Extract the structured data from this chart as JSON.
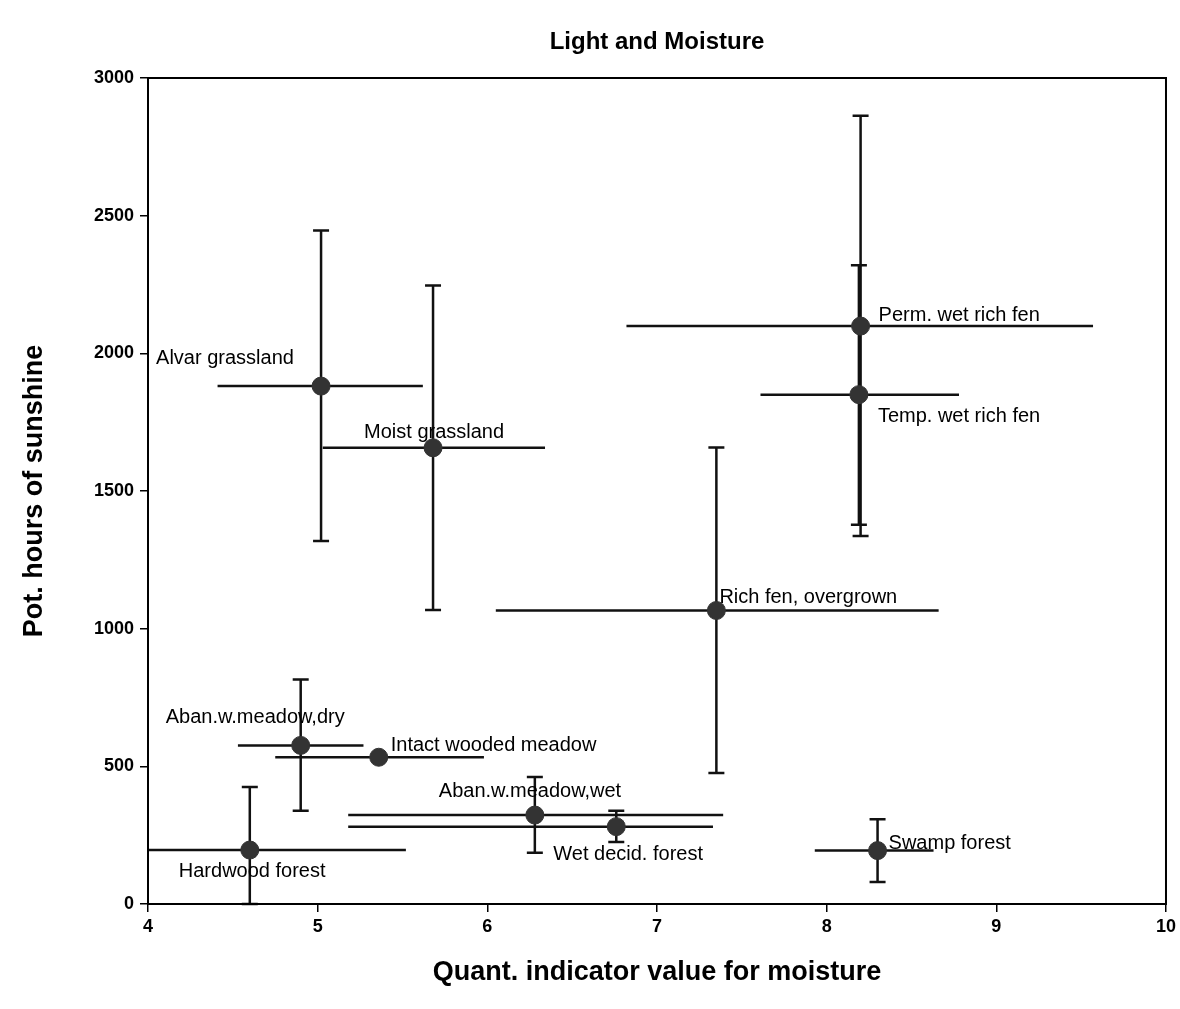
{
  "chart_data": {
    "type": "scatter",
    "title": "Light and Moisture",
    "xlabel": "Quant. indicator value for moisture",
    "ylabel": "Pot. hours of sunshine",
    "x": [
      5.02,
      5.68,
      8.2,
      8.19,
      7.35,
      4.9,
      5.36,
      4.6,
      6.28,
      6.76,
      8.3
    ],
    "values": [
      1881,
      1657,
      2099,
      1850,
      1066,
      576,
      533,
      196,
      323,
      281,
      194
    ],
    "errors": [
      [
        1318,
        2446
      ],
      [
        1068,
        2246
      ],
      [
        1337,
        2863
      ],
      [
        1377,
        2320
      ],
      [
        476,
        1658
      ],
      [
        339,
        815
      ],
      null,
      [
        0,
        425
      ],
      [
        186,
        461
      ],
      [
        225,
        339
      ],
      [
        80,
        308
      ]
    ],
    "xerrors": [
      [
        4.41,
        5.62
      ],
      [
        5.03,
        6.34
      ],
      [
        6.82,
        9.57
      ],
      [
        7.61,
        8.78
      ],
      [
        6.05,
        8.66
      ],
      [
        4.53,
        5.27
      ],
      [
        4.75,
        5.98
      ],
      [
        4.0,
        5.52
      ],
      [
        5.18,
        7.39
      ],
      [
        5.18,
        7.33
      ],
      [
        7.93,
        8.63
      ]
    ],
    "color": "#333333",
    "marker": "circle",
    "grid": false,
    "legend": false,
    "xlim": [
      4,
      10
    ],
    "xticks": [
      4,
      5,
      6,
      7,
      8,
      9,
      10
    ],
    "ylim": [
      0,
      3000
    ],
    "yticks": [
      0,
      500,
      1000,
      1500,
      2000,
      2500,
      3000
    ],
    "annotations": [
      {
        "text": "Alvar grassland",
        "x": 5.02,
        "y": 1881
      },
      {
        "text": "Moist grassland",
        "x": 5.68,
        "y": 1657
      },
      {
        "text": "Perm. wet rich fen",
        "x": 8.2,
        "y": 2099
      },
      {
        "text": "Temp. wet rich fen",
        "x": 8.19,
        "y": 1850
      },
      {
        "text": "Rich fen, overgrown",
        "x": 7.35,
        "y": 1066
      },
      {
        "text": "Aban.w.meadow,dry",
        "x": 4.9,
        "y": 576
      },
      {
        "text": "Intact wooded meadow",
        "x": 5.36,
        "y": 533
      },
      {
        "text": "Hardwood forest",
        "x": 4.6,
        "y": 196
      },
      {
        "text": "Aban.w.meadow,wet",
        "x": 6.28,
        "y": 323
      },
      {
        "text": "Wet decid. forest",
        "x": 6.76,
        "y": 281
      },
      {
        "text": "Swamp forest",
        "x": 8.3,
        "y": 194
      }
    ]
  }
}
